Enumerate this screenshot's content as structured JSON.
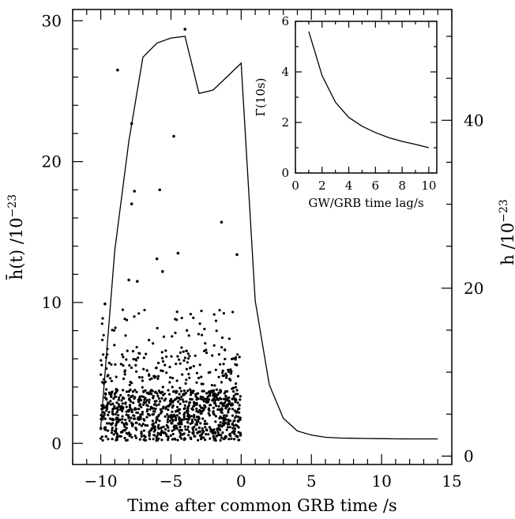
{
  "chart_data": [
    {
      "type": "line+scatter",
      "xlabel": "Time after common GRB time /s",
      "ylabel_left": "h̄(t) /10",
      "ylabel_left_exp": "−23",
      "ylabel_right": "h /10",
      "ylabel_right_exp": "−23",
      "xlim": [
        -12,
        15
      ],
      "ylim_left": [
        -1.5,
        30.8
      ],
      "ylim_right": [
        -1,
        53.2
      ],
      "x_ticks": [
        "−10",
        "−5",
        "0",
        "5",
        "10",
        "15"
      ],
      "y_left_ticks": [
        "0",
        "10",
        "20",
        "30"
      ],
      "y_right_ticks": [
        "0",
        "20",
        "40"
      ],
      "line_series": {
        "axis": "right",
        "x": [
          -10,
          -9,
          -8,
          -7,
          -6,
          -5,
          -4,
          -3,
          -2,
          -1,
          0,
          1,
          2,
          3,
          4,
          5,
          6,
          7,
          8,
          9,
          10,
          11,
          12,
          13,
          14
        ],
        "y": [
          3.5,
          24.5,
          37.5,
          47.5,
          49.2,
          49.8,
          50.0,
          43.2,
          43.6,
          45.2,
          46.8,
          18.5,
          8.5,
          4.5,
          3.0,
          2.5,
          2.25,
          2.15,
          2.12,
          2.1,
          2.08,
          2.06,
          2.05,
          2.05,
          2.05
        ]
      },
      "scatter_series": {
        "axis": "left",
        "x_range": [
          -10,
          0
        ],
        "highlights": [
          {
            "x": -8.8,
            "y": 26.5
          },
          {
            "x": -7.8,
            "y": 22.7
          },
          {
            "x": -7.6,
            "y": 17.9
          },
          {
            "x": -7.8,
            "y": 17.0
          },
          {
            "x": -5.8,
            "y": 18.0
          },
          {
            "x": -4.8,
            "y": 21.8
          },
          {
            "x": -4.0,
            "y": 29.4
          },
          {
            "x": -1.4,
            "y": 15.7
          },
          {
            "x": -0.3,
            "y": 13.4
          },
          {
            "x": -4.5,
            "y": 13.5
          },
          {
            "x": -6.0,
            "y": 13.1
          },
          {
            "x": -5.6,
            "y": 12.2
          },
          {
            "x": -9.7,
            "y": 9.9
          },
          {
            "x": -8.0,
            "y": 11.6
          },
          {
            "x": -7.4,
            "y": 11.5
          }
        ]
      }
    },
    {
      "type": "line",
      "xlabel": "GW/GRB time lag/s",
      "ylabel": "Γ̄(10s)",
      "xlim": [
        0,
        10.6
      ],
      "ylim": [
        0,
        6
      ],
      "x_ticks": [
        "0",
        "2",
        "4",
        "6",
        "8",
        "10"
      ],
      "y_ticks": [
        "0",
        "2",
        "4",
        "6"
      ],
      "x": [
        1,
        2,
        3,
        4,
        5,
        6,
        7,
        8,
        9,
        10
      ],
      "y": [
        5.6,
        3.85,
        2.8,
        2.2,
        1.85,
        1.6,
        1.4,
        1.25,
        1.13,
        1.0
      ]
    }
  ]
}
